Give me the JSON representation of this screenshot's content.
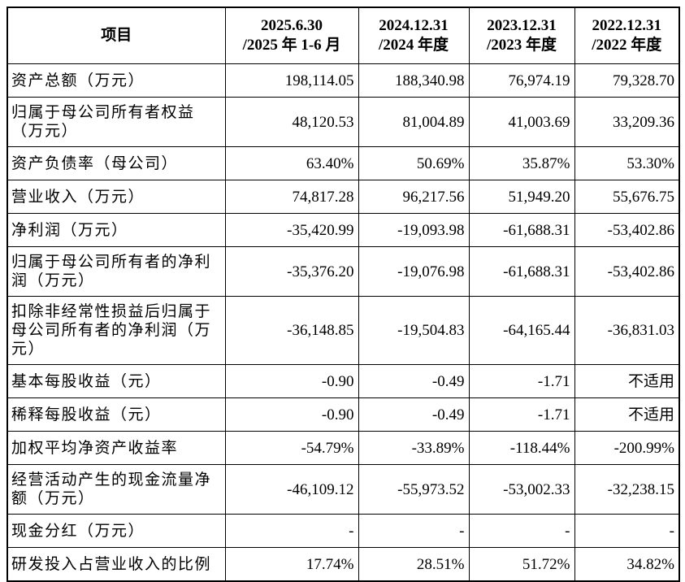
{
  "table": {
    "header": [
      [
        "项目"
      ],
      [
        "2025.6.30",
        "/2025 年 1-6 月"
      ],
      [
        "2024.12.31",
        "/2024 年度"
      ],
      [
        "2023.12.31",
        "/2023 年度"
      ],
      [
        "2022.12.31",
        "/2022 年度"
      ]
    ],
    "rows": [
      {
        "label": [
          "资产总额（万元）"
        ],
        "values": [
          "198,114.05",
          "188,340.98",
          "76,974.19",
          "79,328.70"
        ]
      },
      {
        "label": [
          "归属于母公司所有者权益",
          "（万元）"
        ],
        "values": [
          "48,120.53",
          "81,004.89",
          "41,003.69",
          "33,209.36"
        ]
      },
      {
        "label": [
          "资产负债率（母公司）"
        ],
        "values": [
          "63.40%",
          "50.69%",
          "35.87%",
          "53.30%"
        ]
      },
      {
        "label": [
          "营业收入（万元）"
        ],
        "values": [
          "74,817.28",
          "96,217.56",
          "51,949.20",
          "55,676.75"
        ]
      },
      {
        "label": [
          "净利润（万元）"
        ],
        "values": [
          "-35,420.99",
          "-19,093.98",
          "-61,688.31",
          "-53,402.86"
        ]
      },
      {
        "label": [
          "归属于母公司所有者的净利",
          "润（万元）"
        ],
        "values": [
          "-35,376.20",
          "-19,076.98",
          "-61,688.31",
          "-53,402.86"
        ]
      },
      {
        "label": [
          "扣除非经常性损益后归属于",
          "母公司所有者的净利润（万",
          "元）"
        ],
        "values": [
          "-36,148.85",
          "-19,504.83",
          "-64,165.44",
          "-36,831.03"
        ]
      },
      {
        "label": [
          "基本每股收益（元）"
        ],
        "values": [
          "-0.90",
          "-0.49",
          "-1.71",
          "不适用"
        ]
      },
      {
        "label": [
          "稀释每股收益（元）"
        ],
        "values": [
          "-0.90",
          "-0.49",
          "-1.71",
          "不适用"
        ]
      },
      {
        "label": [
          "加权平均净资产收益率"
        ],
        "values": [
          "-54.79%",
          "-33.89%",
          "-118.44%",
          "-200.99%"
        ]
      },
      {
        "label": [
          "经营活动产生的现金流量净",
          "额（万元）"
        ],
        "values": [
          "-46,109.12",
          "-55,973.52",
          "-53,002.33",
          "-32,238.15"
        ]
      },
      {
        "label": [
          "现金分红（万元）"
        ],
        "values": [
          "-",
          "-",
          "-",
          "-"
        ]
      },
      {
        "label": [
          "研发投入占营业收入的比例"
        ],
        "values": [
          "17.74%",
          "28.51%",
          "51.72%",
          "34.82%"
        ]
      }
    ]
  }
}
